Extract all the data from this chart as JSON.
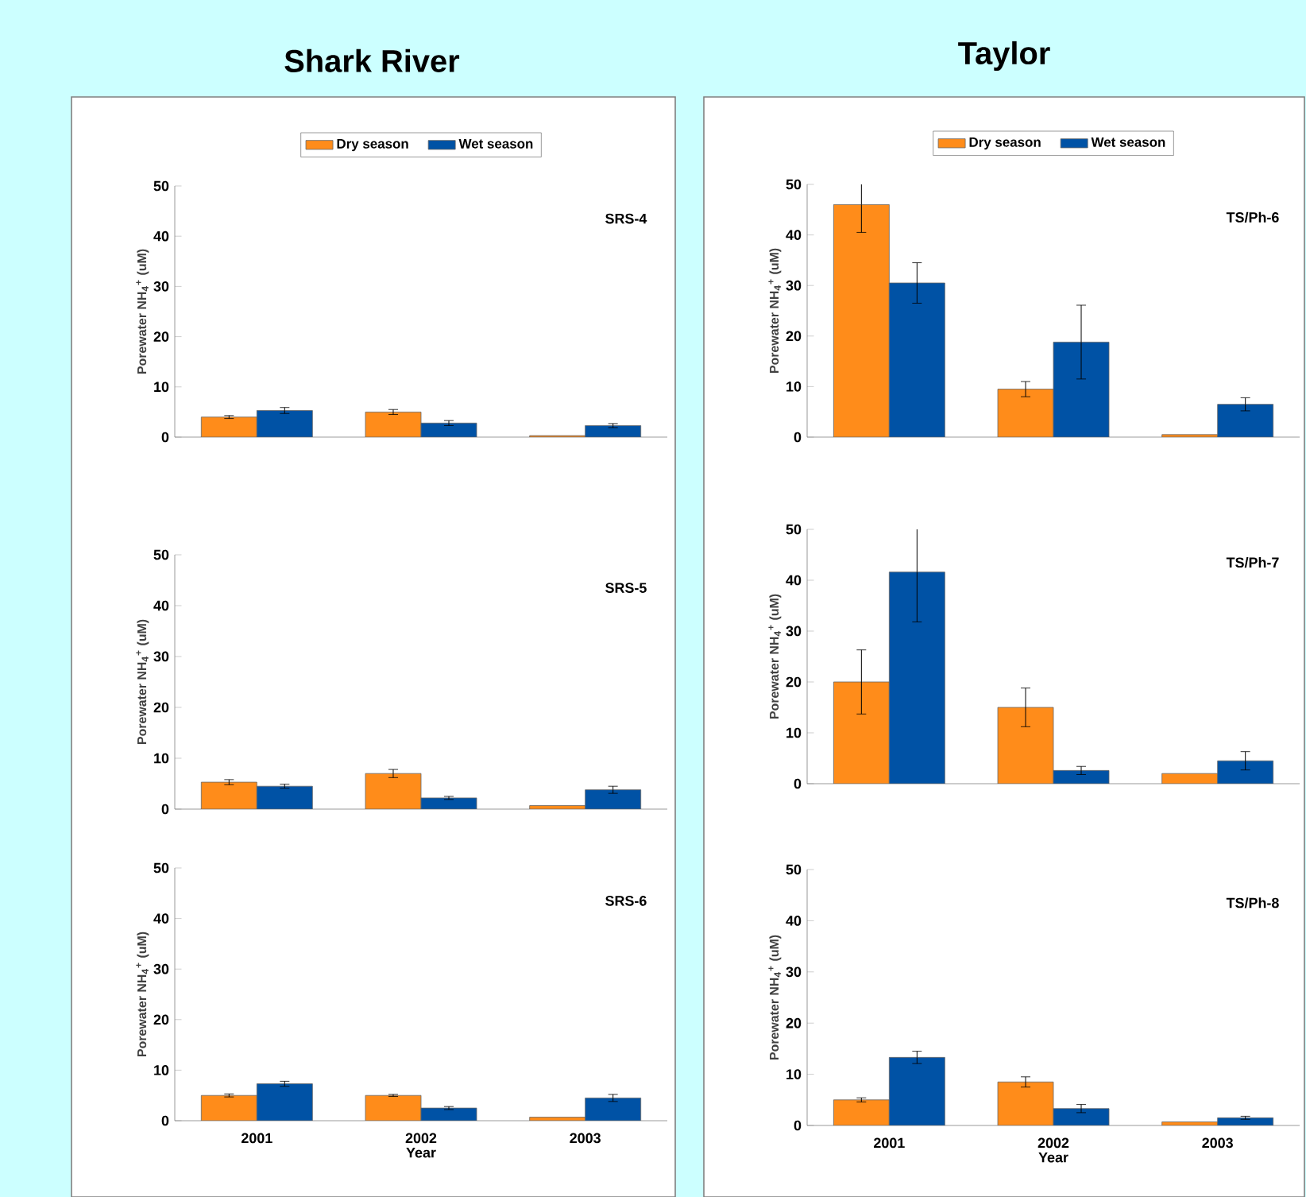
{
  "chart_data": [
    {
      "type": "bar",
      "title": "Shark River",
      "legend": "top",
      "tick_labels": "y",
      "ylabel": "Porewater NH$_{4}$$^{+}$ (uM)",
      "categories": [
        "2001",
        "2002",
        "2003"
      ],
      "ylim": [
        0,
        50
      ],
      "yticks": [
        0,
        10,
        20,
        30,
        40,
        50
      ],
      "annotations": [
        "SRS-4"
      ],
      "series": [
        {
          "name": "Dry season",
          "color": "#ff8c1a",
          "values": [
            4,
            5,
            0.3
          ],
          "errors": [
            0.3,
            0.5,
            null
          ]
        },
        {
          "name": "Wet season",
          "color": "#0052a5",
          "values": [
            5.3,
            2.8,
            2.3
          ],
          "errors": [
            0.6,
            0.5,
            0.4
          ]
        }
      ]
    },
    {
      "type": "bar",
      "title": "Taylor",
      "legend": "top",
      "tick_labels": "y",
      "ylabel": "Porewater NH$_{4}$$^{+}$ (uM)",
      "categories": [
        "2001",
        "2002",
        "2003"
      ],
      "ylim": [
        0,
        50
      ],
      "yticks": [
        0,
        10,
        20,
        30,
        40,
        50
      ],
      "annotations": [
        "TS/Ph-6"
      ],
      "series": [
        {
          "name": "Dry season",
          "color": "#ff8c1a",
          "values": [
            46,
            9.5,
            0.5
          ],
          "errors": [
            5.5,
            1.5,
            null
          ]
        },
        {
          "name": "Wet season",
          "color": "#0052a5",
          "values": [
            30.5,
            18.8,
            6.5
          ],
          "errors": [
            4,
            7.3,
            1.3
          ]
        }
      ]
    },
    {
      "type": "bar",
      "tick_labels": "y",
      "ylabel": "Porewater NH$_{4}$$^{+}$ (uM)",
      "categories": [
        "2001",
        "2002",
        "2003"
      ],
      "ylim": [
        0,
        50
      ],
      "yticks": [
        0,
        10,
        20,
        30,
        40,
        50
      ],
      "annotations": [
        "SRS-5"
      ],
      "series": [
        {
          "color": "#ff8c1a",
          "values": [
            5.3,
            7,
            0.7
          ],
          "errors": [
            0.5,
            0.8,
            null
          ]
        },
        {
          "color": "#0052a5",
          "values": [
            4.5,
            2.2,
            3.8
          ],
          "errors": [
            0.4,
            0.3,
            0.7
          ]
        }
      ]
    },
    {
      "type": "bar",
      "tick_labels": "y",
      "ylabel": "Porewater NH$_{4}$$^{+}$ (uM)",
      "categories": [
        "2001",
        "2002",
        "2003"
      ],
      "ylim": [
        0,
        50
      ],
      "yticks": [
        0,
        10,
        20,
        30,
        40,
        50
      ],
      "annotations": [
        "TS/Ph-7"
      ],
      "series": [
        {
          "color": "#ff8c1a",
          "values": [
            20,
            15,
            2
          ],
          "errors": [
            6.3,
            3.8,
            null
          ]
        },
        {
          "color": "#0052a5",
          "values": [
            41.6,
            2.6,
            4.5
          ],
          "errors": [
            9.8,
            0.8,
            1.8
          ]
        }
      ]
    },
    {
      "type": "bar",
      "xlabel": "Year",
      "ylabel": "Porewater NH$_{4}$$^{+}$ (uM)",
      "categories": [
        "2001",
        "2002",
        "2003"
      ],
      "ylim": [
        0,
        50
      ],
      "yticks": [
        0,
        10,
        20,
        30,
        40,
        50
      ],
      "annotations": [
        "SRS-6"
      ],
      "series": [
        {
          "color": "#ff8c1a",
          "values": [
            5,
            5,
            0.7
          ],
          "errors": [
            0.3,
            0.2,
            null
          ]
        },
        {
          "color": "#0052a5",
          "values": [
            7.3,
            2.5,
            4.5
          ],
          "errors": [
            0.5,
            0.3,
            0.7
          ]
        }
      ]
    },
    {
      "type": "bar",
      "xlabel": "Year",
      "ylabel": "Porewater NH$_{4}$$^{+}$ (uM)",
      "categories": [
        "2001",
        "2002",
        "2003"
      ],
      "ylim": [
        0,
        50
      ],
      "yticks": [
        0,
        10,
        20,
        30,
        40,
        50
      ],
      "annotations": [
        "TS/Ph-8"
      ],
      "series": [
        {
          "color": "#ff8c1a",
          "values": [
            5,
            8.5,
            0.7
          ],
          "errors": [
            0.4,
            1,
            null
          ]
        },
        {
          "color": "#0052a5",
          "values": [
            13.3,
            3.3,
            1.5
          ],
          "errors": [
            1.2,
            0.8,
            0.3
          ]
        }
      ]
    }
  ]
}
